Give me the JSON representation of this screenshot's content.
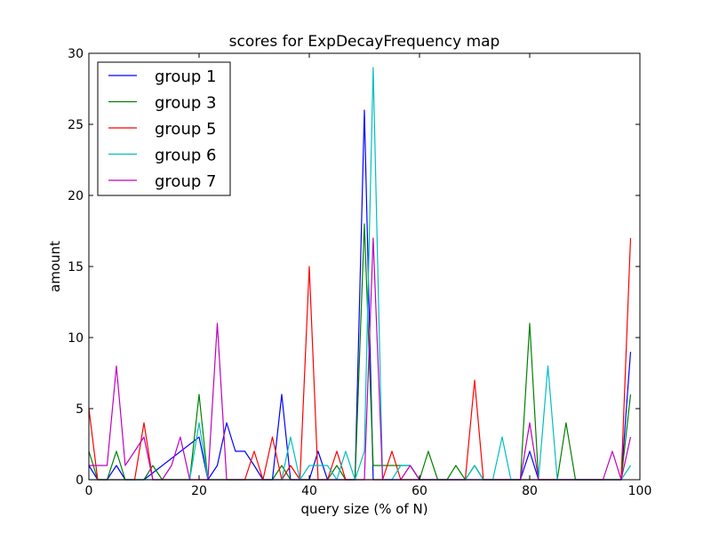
{
  "chart_data": {
    "type": "line",
    "title": "scores for ExpDecayFrequency map",
    "xlabel": "query size (% of N)",
    "ylabel": "amount",
    "xlim": [
      0,
      100
    ],
    "ylim": [
      0,
      30
    ],
    "xticks": [
      "0",
      "20",
      "40",
      "60",
      "80",
      "100"
    ],
    "yticks": [
      "0",
      "5",
      "10",
      "15",
      "20",
      "25",
      "30"
    ],
    "grid": false,
    "legend_position": "top-left",
    "series": [
      {
        "name": "group 1",
        "color": "#0000ff",
        "points": [
          [
            0,
            1
          ],
          [
            1.6,
            0
          ],
          [
            3.3,
            0
          ],
          [
            5,
            1
          ],
          [
            6.6,
            0
          ],
          [
            10,
            0
          ],
          [
            20,
            3
          ],
          [
            21.6,
            0
          ],
          [
            23.3,
            1
          ],
          [
            25,
            4
          ],
          [
            26.6,
            2
          ],
          [
            28.3,
            2
          ],
          [
            30,
            1
          ],
          [
            31.6,
            0
          ],
          [
            33.3,
            0
          ],
          [
            35,
            6
          ],
          [
            36.6,
            0
          ],
          [
            38.3,
            0
          ],
          [
            40,
            0
          ],
          [
            41.6,
            2
          ],
          [
            43.3,
            0
          ],
          [
            45,
            0
          ],
          [
            46.6,
            0
          ],
          [
            48.3,
            0
          ],
          [
            50,
            26
          ],
          [
            51.6,
            0
          ],
          [
            53.3,
            0
          ],
          [
            55,
            0
          ],
          [
            56.6,
            0
          ],
          [
            58.3,
            0
          ],
          [
            60,
            0
          ],
          [
            78.3,
            0
          ],
          [
            80,
            2
          ],
          [
            81.6,
            0
          ],
          [
            96.6,
            0
          ],
          [
            98.3,
            9
          ]
        ]
      },
      {
        "name": "group 3",
        "color": "#008000",
        "points": [
          [
            0,
            2
          ],
          [
            1.6,
            0
          ],
          [
            3.3,
            0
          ],
          [
            5,
            2
          ],
          [
            6.6,
            0
          ],
          [
            10,
            0
          ],
          [
            11.6,
            1
          ],
          [
            13.3,
            0
          ],
          [
            18.3,
            0
          ],
          [
            20,
            6
          ],
          [
            21.6,
            0
          ],
          [
            33.3,
            0
          ],
          [
            35,
            1
          ],
          [
            36.6,
            0
          ],
          [
            38.3,
            0
          ],
          [
            40,
            0
          ],
          [
            43.3,
            0
          ],
          [
            45,
            1
          ],
          [
            46.6,
            0
          ],
          [
            48.3,
            0
          ],
          [
            50,
            18
          ],
          [
            51.6,
            1
          ],
          [
            53.3,
            1
          ],
          [
            55,
            1
          ],
          [
            56.6,
            1
          ],
          [
            58.3,
            1
          ],
          [
            60,
            0
          ],
          [
            61.6,
            2
          ],
          [
            63.3,
            0
          ],
          [
            65,
            0
          ],
          [
            66.6,
            1
          ],
          [
            68.3,
            0
          ],
          [
            70,
            1
          ],
          [
            71.6,
            0
          ],
          [
            78.3,
            0
          ],
          [
            80,
            11
          ],
          [
            81.6,
            0
          ],
          [
            85,
            0
          ],
          [
            86.6,
            4
          ],
          [
            88.3,
            0
          ],
          [
            96.6,
            0
          ],
          [
            98.3,
            6
          ]
        ]
      },
      {
        "name": "group 5",
        "color": "#ff0000",
        "points": [
          [
            0,
            5
          ],
          [
            1.6,
            0
          ],
          [
            8.3,
            0
          ],
          [
            10,
            4
          ],
          [
            11.6,
            0
          ],
          [
            26.6,
            0
          ],
          [
            28.3,
            0
          ],
          [
            30,
            2
          ],
          [
            31.6,
            0
          ],
          [
            33.3,
            3
          ],
          [
            35,
            0
          ],
          [
            36.6,
            1
          ],
          [
            38.3,
            0
          ],
          [
            40,
            15
          ],
          [
            41.6,
            0
          ],
          [
            43.3,
            0
          ],
          [
            45,
            2
          ],
          [
            46.6,
            0
          ],
          [
            48.3,
            0
          ],
          [
            50,
            0
          ],
          [
            51.6,
            0
          ],
          [
            53.3,
            0
          ],
          [
            55,
            2
          ],
          [
            56.6,
            0
          ],
          [
            68.3,
            0
          ],
          [
            70,
            7
          ],
          [
            71.6,
            0
          ],
          [
            96.6,
            0
          ],
          [
            98.3,
            17
          ]
        ]
      },
      {
        "name": "group 6",
        "color": "#00bfbf",
        "points": [
          [
            0,
            0
          ],
          [
            18.3,
            0
          ],
          [
            20,
            4
          ],
          [
            21.6,
            0
          ],
          [
            35,
            0
          ],
          [
            36.6,
            3
          ],
          [
            38.3,
            0
          ],
          [
            40,
            1
          ],
          [
            41.6,
            1
          ],
          [
            43.3,
            1
          ],
          [
            45,
            0
          ],
          [
            46.6,
            2
          ],
          [
            48.3,
            0
          ],
          [
            50,
            2
          ],
          [
            51.6,
            29
          ],
          [
            53.3,
            0
          ],
          [
            55,
            0
          ],
          [
            56.6,
            1
          ],
          [
            58.3,
            1
          ],
          [
            60,
            0
          ],
          [
            68.3,
            0
          ],
          [
            70,
            1
          ],
          [
            71.6,
            0
          ],
          [
            73.3,
            0
          ],
          [
            75,
            3
          ],
          [
            76.6,
            0
          ],
          [
            81.6,
            0
          ],
          [
            83.3,
            8
          ],
          [
            85,
            0
          ],
          [
            96.6,
            0
          ],
          [
            98.3,
            1
          ]
        ]
      },
      {
        "name": "group 7",
        "color": "#bf00bf",
        "points": [
          [
            0,
            1
          ],
          [
            1.6,
            1
          ],
          [
            3.3,
            1
          ],
          [
            5,
            8
          ],
          [
            6.6,
            1
          ],
          [
            8.3,
            2
          ],
          [
            10,
            3
          ],
          [
            11.6,
            0
          ],
          [
            13.3,
            0
          ],
          [
            15,
            1
          ],
          [
            16.6,
            3
          ],
          [
            18.3,
            0
          ],
          [
            21.6,
            0
          ],
          [
            23.3,
            11
          ],
          [
            25,
            0
          ],
          [
            48.3,
            0
          ],
          [
            50,
            0
          ],
          [
            51.6,
            17
          ],
          [
            53.3,
            0
          ],
          [
            55,
            0
          ],
          [
            56.6,
            0
          ],
          [
            58.3,
            1
          ],
          [
            60,
            0
          ],
          [
            78.3,
            0
          ],
          [
            80,
            4
          ],
          [
            81.6,
            0
          ],
          [
            93.3,
            0
          ],
          [
            95,
            2
          ],
          [
            96.6,
            0
          ],
          [
            98.3,
            3
          ]
        ]
      }
    ]
  }
}
